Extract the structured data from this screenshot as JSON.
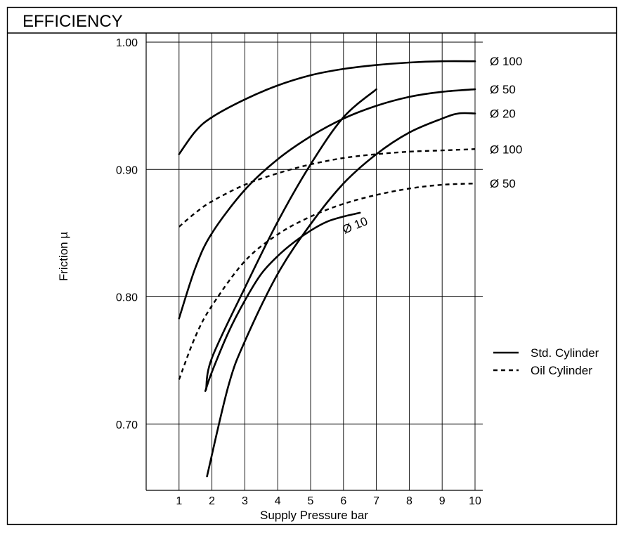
{
  "chart_data": {
    "type": "line",
    "title": "EFFICIENCY",
    "xlabel": "Supply Pressure bar",
    "ylabel": "Friction µ",
    "xlim": [
      0,
      10
    ],
    "ylim": [
      0.648,
      1.0
    ],
    "x_ticks": [
      "1",
      "2",
      "3",
      "4",
      "5",
      "6",
      "7",
      "8",
      "9",
      "10"
    ],
    "y_ticks": [
      {
        "value": 1.0,
        "label": "1.00"
      },
      {
        "value": 0.9,
        "label": "0.90"
      },
      {
        "value": 0.8,
        "label": "0.80"
      },
      {
        "value": 0.7,
        "label": "0.70"
      }
    ],
    "grid": true,
    "legend": {
      "placement": "right",
      "entries": [
        {
          "label": "Std. Cylinder",
          "style": "solid"
        },
        {
          "label": "Oil Cylinder",
          "style": "dashed"
        }
      ]
    },
    "series": [
      {
        "name": "Ø 100",
        "type": "Std. Cylinder",
        "style": "solid",
        "label_at": "end",
        "x": [
          1,
          1.5,
          2,
          3,
          4,
          5,
          6,
          7,
          8,
          9,
          10
        ],
        "y": [
          0.912,
          0.93,
          0.941,
          0.955,
          0.966,
          0.974,
          0.979,
          0.982,
          0.984,
          0.985,
          0.985
        ]
      },
      {
        "name": "Ø 50",
        "type": "Std. Cylinder",
        "style": "solid",
        "label_at": "end",
        "x": [
          1,
          1.5,
          2,
          3,
          4,
          5,
          6,
          7,
          8,
          9,
          10
        ],
        "y": [
          0.783,
          0.823,
          0.85,
          0.884,
          0.908,
          0.926,
          0.94,
          0.95,
          0.957,
          0.961,
          0.963
        ]
      },
      {
        "name": "Ø 20",
        "type": "Std. Cylinder",
        "style": "solid",
        "label_at": "end",
        "x": [
          1.85,
          2.5,
          3,
          4,
          5,
          6,
          7,
          8,
          9,
          9.5,
          10
        ],
        "y": [
          0.659,
          0.73,
          0.765,
          0.818,
          0.857,
          0.889,
          0.912,
          0.929,
          0.94,
          0.944,
          0.944
        ]
      },
      {
        "name": "",
        "type": "Std. Cylinder",
        "style": "solid",
        "label_at": "",
        "x": [
          1.82,
          2,
          3,
          4,
          5,
          6,
          7
        ],
        "y": [
          0.727,
          0.752,
          0.807,
          0.859,
          0.904,
          0.941,
          0.963
        ]
      },
      {
        "name": "Ø 10",
        "type": "Std. Cylinder",
        "style": "solid",
        "label_at": "end",
        "x": [
          1.8,
          2,
          2.5,
          3,
          3.5,
          4,
          4.5,
          5,
          5.5,
          6,
          6.5
        ],
        "y": [
          0.726,
          0.741,
          0.772,
          0.797,
          0.818,
          0.832,
          0.843,
          0.852,
          0.859,
          0.863,
          0.866
        ]
      },
      {
        "name": "Ø 100",
        "type": "Oil Cylinder",
        "style": "dashed",
        "label_at": "end",
        "x": [
          1,
          1.5,
          2,
          3,
          4,
          5,
          6,
          7,
          8,
          9,
          10
        ],
        "y": [
          0.855,
          0.866,
          0.875,
          0.888,
          0.897,
          0.904,
          0.909,
          0.912,
          0.914,
          0.915,
          0.916
        ]
      },
      {
        "name": "Ø 50",
        "type": "Oil Cylinder",
        "style": "dashed",
        "label_at": "end",
        "x": [
          1,
          1.5,
          2,
          3,
          4,
          5,
          6,
          7,
          8,
          9,
          10
        ],
        "y": [
          0.735,
          0.769,
          0.793,
          0.828,
          0.849,
          0.863,
          0.873,
          0.88,
          0.885,
          0.888,
          0.889
        ]
      }
    ]
  }
}
